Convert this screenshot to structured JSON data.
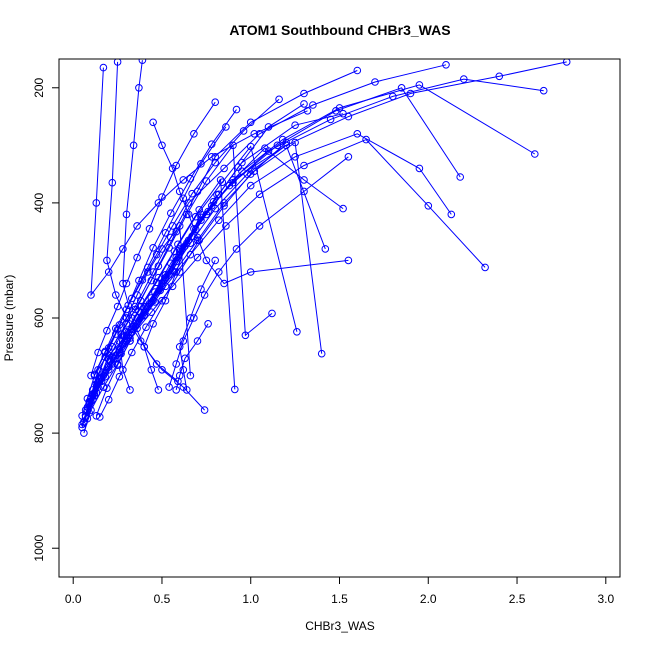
{
  "chart_data": {
    "type": "line",
    "title": "ATOM1 Southbound CHBr3_WAS",
    "xlabel": "CHBr3_WAS",
    "ylabel": "Pressure (mbar)",
    "xlim": [
      -0.08,
      3.08
    ],
    "ylim": [
      1050,
      150
    ],
    "y_reversed": true,
    "x_ticks": [
      0.0,
      0.5,
      1.0,
      1.5,
      2.0,
      2.5,
      3.0
    ],
    "x_tick_labels": [
      "0.0",
      "0.5",
      "1.0",
      "1.5",
      "2.0",
      "2.5",
      "3.0"
    ],
    "y_ticks": [
      200,
      400,
      600,
      800,
      1000
    ],
    "y_tick_labels": [
      "200",
      "400",
      "600",
      "800",
      "1000"
    ],
    "series_color": "#0000ff",
    "marker": "open-circle",
    "grid": false,
    "legend": "none",
    "series": [
      {
        "x": [
          0.05,
          0.08,
          0.12,
          0.18,
          0.25,
          0.35,
          0.45,
          0.55,
          0.65,
          0.85,
          1.05,
          1.35,
          1.7,
          2.1
        ],
        "y": [
          770,
          740,
          700,
          660,
          620,
          580,
          520,
          460,
          400,
          340,
          280,
          230,
          190,
          160
        ]
      },
      {
        "x": [
          0.06,
          0.1,
          0.15,
          0.2,
          0.3,
          0.4,
          0.5,
          0.6,
          0.75,
          0.9,
          1.2,
          1.55,
          1.9,
          2.4,
          2.78
        ],
        "y": [
          780,
          745,
          705,
          665,
          630,
          590,
          540,
          480,
          420,
          360,
          300,
          250,
          210,
          180,
          155
        ]
      },
      {
        "x": [
          0.07,
          0.11,
          0.14,
          0.22,
          0.3,
          0.38,
          0.48,
          0.58,
          0.7,
          0.8,
          1.0,
          1.3,
          1.6
        ],
        "y": [
          760,
          725,
          690,
          650,
          610,
          570,
          510,
          450,
          380,
          320,
          260,
          210,
          170
        ]
      },
      {
        "x": [
          0.08,
          0.12,
          0.18,
          0.26,
          0.34,
          0.44,
          0.55,
          0.68,
          0.82,
          0.95,
          1.25,
          1.52
        ],
        "y": [
          775,
          735,
          695,
          655,
          615,
          565,
          505,
          445,
          385,
          330,
          265,
          245
        ]
      },
      {
        "x": [
          0.09,
          0.13,
          0.2,
          0.28,
          0.36,
          0.46,
          0.58,
          0.72,
          0.88,
          1.1,
          1.45,
          1.8,
          2.2,
          2.65
        ],
        "y": [
          765,
          730,
          690,
          645,
          600,
          555,
          495,
          430,
          370,
          310,
          255,
          215,
          185,
          205
        ]
      },
      {
        "x": [
          0.05,
          0.09,
          0.16,
          0.24,
          0.33,
          0.42,
          0.52,
          0.65,
          0.78,
          0.95,
          1.18,
          1.5,
          1.95,
          2.6
        ],
        "y": [
          790,
          750,
          710,
          670,
          625,
          580,
          525,
          465,
          405,
          345,
          290,
          235,
          195,
          315
        ]
      },
      {
        "x": [
          0.06,
          0.1,
          0.17,
          0.25,
          0.32,
          0.4,
          0.5,
          0.6,
          0.72,
          0.9,
          1.15,
          1.48,
          1.85,
          2.18
        ],
        "y": [
          800,
          760,
          720,
          680,
          640,
          595,
          545,
          485,
          425,
          365,
          300,
          240,
          200,
          355
        ]
      },
      {
        "x": [
          0.07,
          0.12,
          0.2,
          0.3,
          0.4,
          0.52,
          0.66,
          0.82,
          1.0,
          1.25,
          1.6,
          1.95,
          2.13
        ],
        "y": [
          770,
          730,
          685,
          640,
          595,
          545,
          490,
          430,
          370,
          320,
          280,
          340,
          420
        ]
      },
      {
        "x": [
          0.08,
          0.14,
          0.22,
          0.32,
          0.44,
          0.56,
          0.7,
          0.86,
          1.05,
          1.3,
          1.65,
          2.0,
          2.32
        ],
        "y": [
          760,
          720,
          680,
          635,
          590,
          545,
          495,
          440,
          385,
          335,
          290,
          405,
          512
        ]
      },
      {
        "x": [
          0.09,
          0.15,
          0.23,
          0.31,
          0.41,
          0.52,
          0.63,
          0.76,
          0.9,
          1.08,
          1.3,
          1.52
        ],
        "y": [
          750,
          710,
          670,
          625,
          580,
          530,
          475,
          415,
          360,
          305,
          360,
          410
        ]
      },
      {
        "x": [
          0.1,
          0.16,
          0.24,
          0.33,
          0.43,
          0.54,
          0.66,
          0.8,
          0.98,
          1.2,
          1.42
        ],
        "y": [
          740,
          705,
          665,
          620,
          575,
          525,
          470,
          410,
          350,
          300,
          480
        ]
      },
      {
        "x": [
          0.11,
          0.17,
          0.26,
          0.35,
          0.45,
          0.57,
          0.7,
          0.85,
          1.02,
          1.25,
          1.4
        ],
        "y": [
          735,
          700,
          660,
          615,
          570,
          520,
          465,
          400,
          345,
          295,
          662
        ]
      },
      {
        "x": [
          0.08,
          0.13,
          0.21,
          0.29,
          0.37,
          0.47,
          0.57,
          0.69,
          0.84,
          1.0,
          1.26
        ],
        "y": [
          755,
          715,
          675,
          632,
          588,
          538,
          484,
          424,
          364,
          302,
          624
        ]
      },
      {
        "x": [
          0.09,
          0.14,
          0.2,
          0.27,
          0.35,
          0.44,
          0.54,
          0.64,
          0.75,
          0.9,
          0.97,
          1.12
        ],
        "y": [
          745,
          712,
          672,
          628,
          585,
          535,
          478,
          420,
          362,
          300,
          630,
          592
        ]
      },
      {
        "x": [
          0.1,
          0.15,
          0.22,
          0.3,
          0.38,
          0.48,
          0.59,
          0.71,
          0.83,
          0.91
        ],
        "y": [
          738,
          706,
          668,
          624,
          580,
          530,
          472,
          412,
          360,
          724
        ]
      },
      {
        "x": [
          0.06,
          0.11,
          0.18,
          0.27,
          0.36,
          0.46,
          0.56,
          0.67,
          0.79,
          0.93,
          1.1,
          1.3
        ],
        "y": [
          782,
          742,
          702,
          662,
          618,
          572,
          518,
          458,
          398,
          338,
          268,
          228
        ]
      },
      {
        "x": [
          0.07,
          0.11,
          0.15,
          0.2,
          0.26,
          0.33,
          0.42,
          0.52,
          0.62,
          0.72,
          0.86
        ],
        "y": [
          772,
          732,
          692,
          652,
          612,
          566,
          512,
          452,
          392,
          332,
          268
        ]
      },
      {
        "x": [
          0.05,
          0.09,
          0.13,
          0.18,
          0.24,
          0.3,
          0.37,
          0.45,
          0.55,
          0.66,
          0.78,
          0.92
        ],
        "y": [
          785,
          748,
          708,
          668,
          628,
          585,
          535,
          478,
          418,
          358,
          298,
          238
        ]
      },
      {
        "x": [
          0.1,
          0.14,
          0.19,
          0.25,
          0.3,
          0.36,
          0.43,
          0.5,
          0.58,
          0.68,
          0.8
        ],
        "y": [
          700,
          660,
          622,
          580,
          540,
          495,
          445,
          390,
          335,
          280,
          225
        ]
      },
      {
        "x": [
          0.12,
          0.18,
          0.24,
          0.31,
          0.39,
          0.47,
          0.56,
          0.67,
          0.8,
          0.96,
          1.16
        ],
        "y": [
          698,
          658,
          618,
          578,
          534,
          490,
          440,
          384,
          330,
          275,
          220
        ]
      },
      {
        "x": [
          0.15,
          0.2,
          0.26,
          0.33,
          0.41,
          0.5,
          0.6,
          0.71,
          0.85,
          1.0,
          1.2
        ],
        "y": [
          772,
          742,
          702,
          660,
          616,
          570,
          520,
          465,
          405,
          350,
          295
        ]
      },
      {
        "x": [
          0.13,
          0.19,
          0.25,
          0.32,
          0.4,
          0.49,
          0.58,
          0.69,
          0.81
        ],
        "y": [
          770,
          722,
          682,
          640,
          596,
          552,
          502,
          446,
          386
        ]
      },
      {
        "x": [
          0.17,
          0.13,
          0.1,
          0.2,
          0.28,
          0.36,
          0.48,
          0.62,
          0.78,
          1.02,
          1.32
        ],
        "y": [
          165,
          400,
          560,
          520,
          480,
          440,
          400,
          360,
          320,
          280,
          240
        ]
      },
      {
        "x": [
          0.25,
          0.22,
          0.19,
          0.24,
          0.3,
          0.38,
          0.47,
          0.59
        ],
        "y": [
          155,
          365,
          500,
          560,
          600,
          640,
          680,
          710
        ]
      },
      {
        "x": [
          0.39,
          0.37,
          0.34,
          0.3,
          0.28,
          0.33,
          0.4,
          0.5,
          0.62,
          0.74
        ],
        "y": [
          152,
          200,
          300,
          420,
          540,
          600,
          650,
          690,
          720,
          760
        ]
      },
      {
        "x": [
          0.45,
          0.5,
          0.56,
          0.6,
          0.65,
          0.7,
          0.75,
          0.85,
          1.0,
          1.55
        ],
        "y": [
          260,
          300,
          340,
          380,
          420,
          460,
          500,
          540,
          520,
          500
        ]
      },
      {
        "x": [
          0.54,
          0.58,
          0.62,
          0.68,
          0.74,
          0.82,
          0.92,
          1.05,
          1.3,
          1.55
        ],
        "y": [
          720,
          680,
          640,
          600,
          560,
          520,
          480,
          440,
          380,
          320
        ]
      },
      {
        "x": [
          0.32,
          0.28,
          0.26,
          0.3,
          0.36,
          0.42,
          0.5,
          0.6,
          0.66
        ],
        "y": [
          725,
          690,
          640,
          600,
          560,
          520,
          480,
          440,
          700
        ]
      },
      {
        "x": [
          0.48,
          0.44,
          0.4,
          0.45,
          0.52,
          0.58,
          0.64,
          0.72
        ],
        "y": [
          725,
          690,
          650,
          610,
          570,
          520,
          470,
          420
        ]
      },
      {
        "x": [
          0.58,
          0.6,
          0.63,
          0.7,
          0.76
        ],
        "y": [
          725,
          700,
          670,
          640,
          610
        ]
      },
      {
        "x": [
          0.64,
          0.62,
          0.6,
          0.66,
          0.72,
          0.8
        ],
        "y": [
          725,
          690,
          650,
          600,
          550,
          500
        ]
      }
    ]
  }
}
